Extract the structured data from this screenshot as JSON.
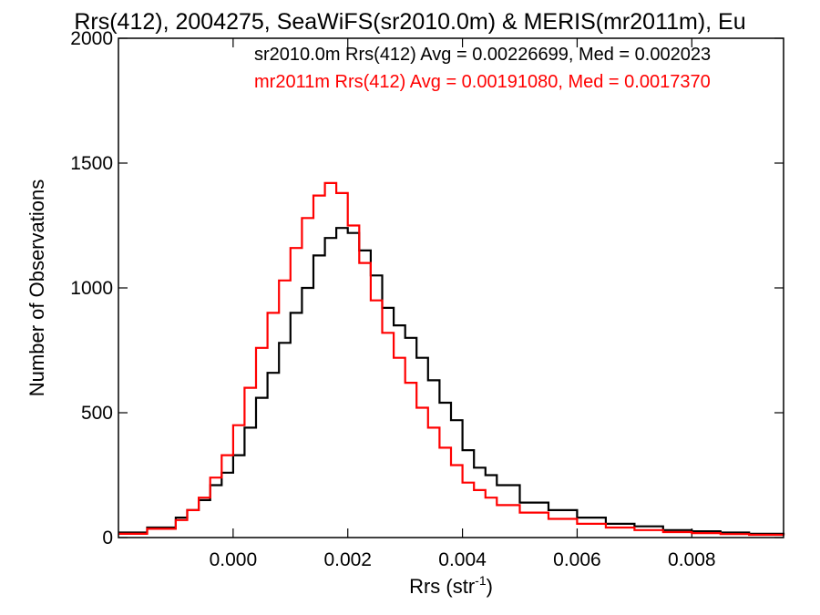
{
  "chart_data": {
    "type": "line",
    "title": "Rrs(412), 2004275, SeaWiFS(sr2010.0m) & MERIS(mr2011m), Eu",
    "xlabel": "Rrs (str",
    "xlabel_sup": "-1",
    "xlabel_close": ")",
    "ylabel": "Number of Observations",
    "xlim": [
      -0.002,
      0.0096
    ],
    "ylim": [
      0,
      2000
    ],
    "x_ticks": [
      0.0,
      0.002,
      0.004,
      0.006,
      0.008
    ],
    "x_tick_labels": [
      "0.000",
      "0.002",
      "0.004",
      "0.006",
      "0.008"
    ],
    "y_ticks": [
      0,
      500,
      1000,
      1500,
      2000
    ],
    "y_tick_labels": [
      "0",
      "500",
      "1000",
      "1500",
      "2000"
    ],
    "grid": false,
    "legend_position": "top",
    "series": [
      {
        "name": "sr2010.0m Rrs(412) Avg = 0.00226699, Med = 0.002023",
        "color": "#000000",
        "x": [
          -0.002,
          -0.0015,
          -0.001,
          -0.0008,
          -0.0006,
          -0.0004,
          -0.0002,
          0.0,
          0.0002,
          0.0004,
          0.0006,
          0.0008,
          0.001,
          0.0012,
          0.0014,
          0.0016,
          0.0018,
          0.002,
          0.0022,
          0.0024,
          0.0026,
          0.0028,
          0.003,
          0.0032,
          0.0034,
          0.0036,
          0.0038,
          0.004,
          0.0042,
          0.0044,
          0.0046,
          0.005,
          0.0055,
          0.006,
          0.0065,
          0.007,
          0.0075,
          0.008,
          0.0085,
          0.009,
          0.0096
        ],
        "y": [
          20,
          40,
          80,
          110,
          150,
          210,
          260,
          330,
          440,
          560,
          660,
          780,
          900,
          1000,
          1130,
          1200,
          1240,
          1220,
          1150,
          1050,
          920,
          850,
          800,
          720,
          630,
          540,
          470,
          350,
          280,
          250,
          210,
          140,
          110,
          80,
          55,
          45,
          30,
          25,
          20,
          15,
          10
        ]
      },
      {
        "name": "mr2011m Rrs(412) Avg = 0.00191080, Med = 0.0017370",
        "color": "#ff0000",
        "x": [
          -0.002,
          -0.0015,
          -0.001,
          -0.0008,
          -0.0006,
          -0.0004,
          -0.0002,
          0.0,
          0.0002,
          0.0004,
          0.0006,
          0.0008,
          0.001,
          0.0012,
          0.0014,
          0.0016,
          0.0018,
          0.002,
          0.0022,
          0.0024,
          0.0026,
          0.0028,
          0.003,
          0.0032,
          0.0034,
          0.0036,
          0.0038,
          0.004,
          0.0042,
          0.0044,
          0.0046,
          0.005,
          0.0055,
          0.006,
          0.0065,
          0.007,
          0.0075,
          0.008,
          0.0085,
          0.009,
          0.0096
        ],
        "y": [
          15,
          35,
          70,
          110,
          160,
          240,
          330,
          450,
          600,
          760,
          900,
          1030,
          1160,
          1280,
          1370,
          1420,
          1380,
          1250,
          1100,
          950,
          820,
          720,
          620,
          520,
          440,
          360,
          290,
          220,
          190,
          160,
          130,
          100,
          75,
          55,
          40,
          30,
          22,
          18,
          14,
          11,
          8
        ]
      }
    ]
  }
}
